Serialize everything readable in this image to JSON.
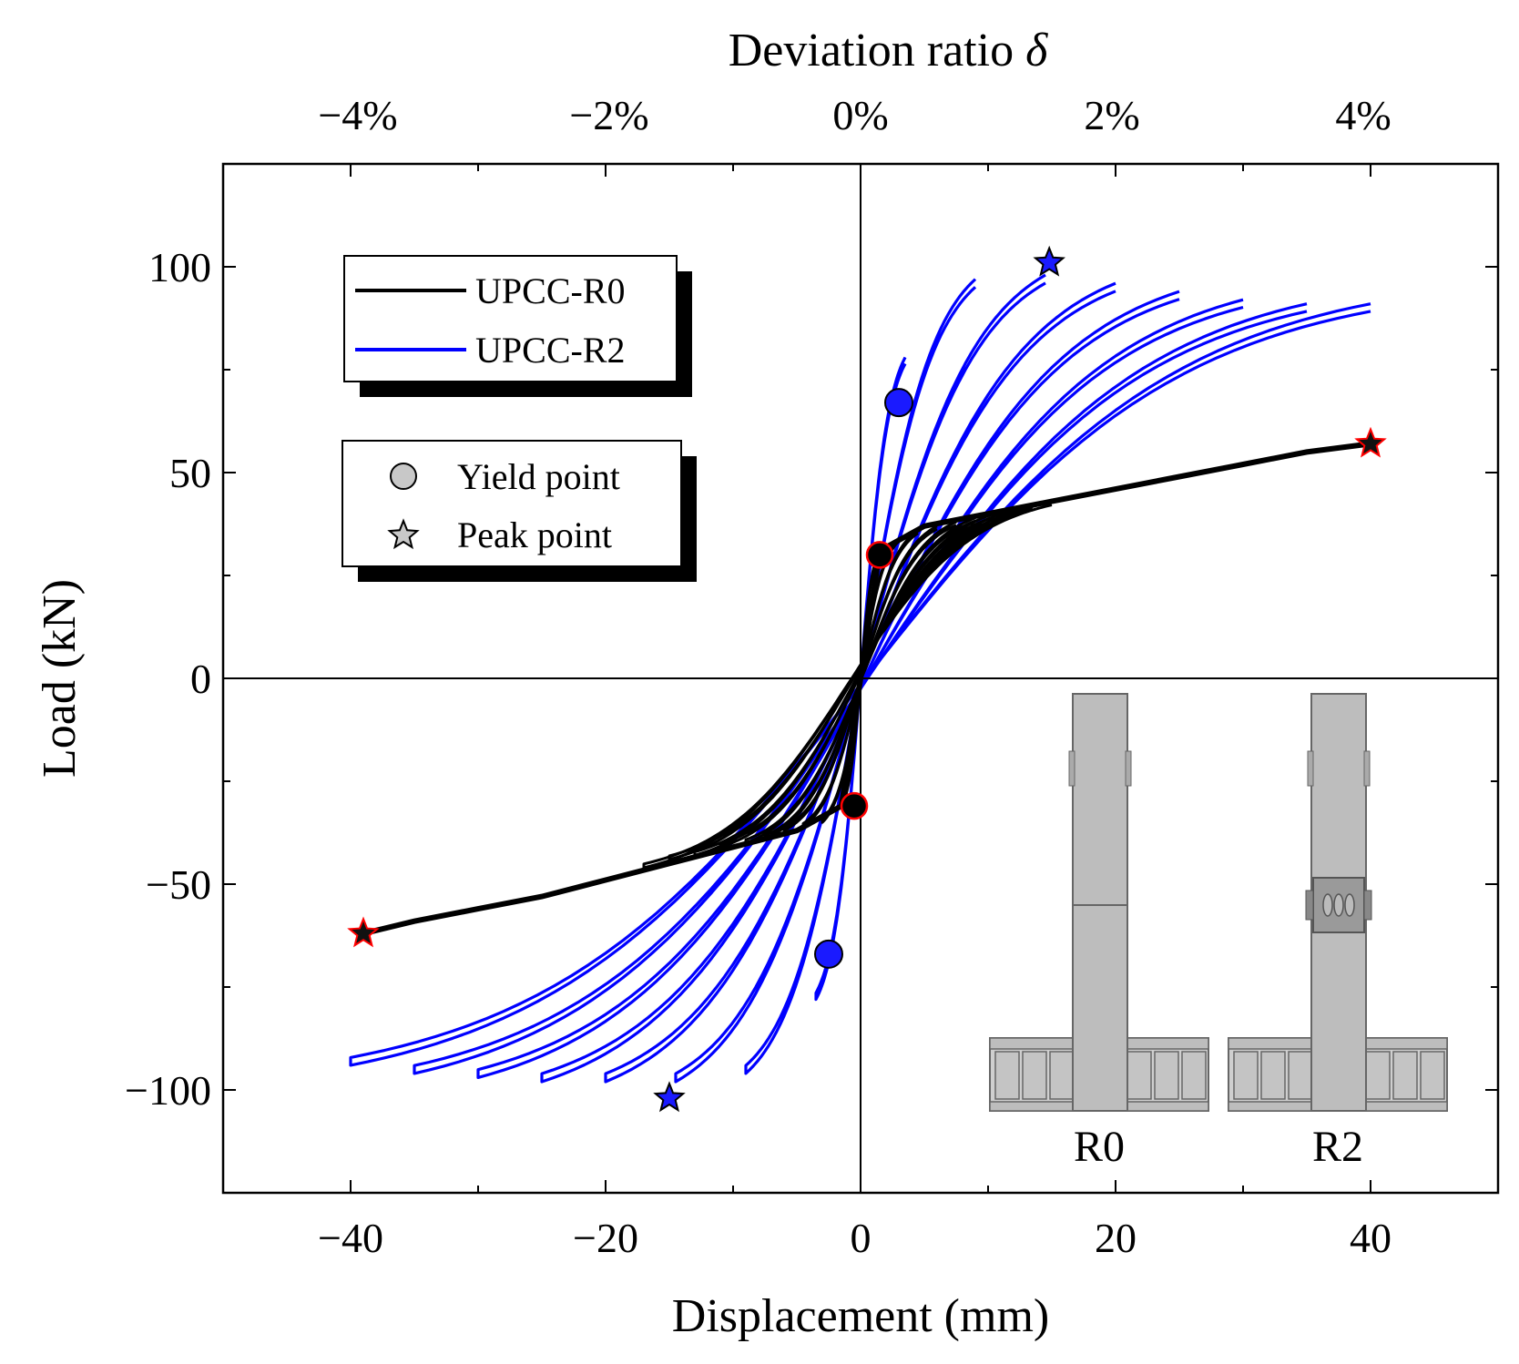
{
  "chart_data": {
    "type": "line",
    "title": "",
    "xlabel": "Displacement (mm)",
    "ylabel": "Load (kN)",
    "top_xlabel_text": "Deviation ratio ",
    "top_xlabel_symbol": "δ",
    "xlim": [
      -50,
      50
    ],
    "ylim": [
      -125,
      125
    ],
    "top_xlim": [
      -5,
      5
    ],
    "x_ticks": [
      -40,
      -20,
      0,
      20,
      40
    ],
    "x_tick_labels": [
      "−40",
      "−20",
      "0",
      "20",
      "40"
    ],
    "y_ticks": [
      -100,
      -50,
      0,
      50,
      100
    ],
    "y_tick_labels": [
      "−100",
      "−50",
      "0",
      "50",
      "100"
    ],
    "top_ticks": [
      -4,
      -2,
      0,
      2,
      4
    ],
    "top_tick_labels": [
      "−4%",
      "−2%",
      "0%",
      "2%",
      "4%"
    ],
    "grid": false,
    "legend_placement": "top-left",
    "series": [
      {
        "name": "UPCC-R0",
        "color": "#000000",
        "cycles": [
          {
            "dmax": 1.5,
            "pmax": 31,
            "dmin": -1.5,
            "pmin": -31
          },
          {
            "dmax": 3,
            "pmax": 34,
            "dmin": -3,
            "pmin": -35
          },
          {
            "dmax": 4.5,
            "pmax": 36,
            "dmin": -4.5,
            "pmin": -36
          },
          {
            "dmax": 6,
            "pmax": 37,
            "dmin": -6,
            "pmin": -37
          },
          {
            "dmax": 7.5,
            "pmax": 38,
            "dmin": -7.5,
            "pmin": -39
          },
          {
            "dmax": 9,
            "pmax": 39,
            "dmin": -9,
            "pmin": -40
          },
          {
            "dmax": 10.5,
            "pmax": 40,
            "dmin": -11,
            "pmin": -41
          },
          {
            "dmax": 12,
            "pmax": 41,
            "dmin": -13,
            "pmin": -43
          },
          {
            "dmax": 13.5,
            "pmax": 42,
            "dmin": -15,
            "pmin": -44
          },
          {
            "dmax": 15,
            "pmax": 43,
            "dmin": -17,
            "pmin": -46
          }
        ],
        "envelope_x": [
          0,
          1.5,
          5,
          10,
          15,
          20,
          25,
          30,
          35,
          40
        ],
        "envelope_y": [
          0,
          31,
          37,
          40,
          43,
          46,
          49,
          52,
          55,
          57
        ],
        "envelope_neg_x": [
          0,
          -1.5,
          -5,
          -10,
          -15,
          -20,
          -25,
          -30,
          -35,
          -39
        ],
        "envelope_neg_y": [
          0,
          -31,
          -37,
          -41,
          -45,
          -49,
          -53,
          -56,
          -59,
          -62
        ]
      },
      {
        "name": "UPCC-R2",
        "color": "#0000ff",
        "cycles": [
          {
            "dmax": 3.5,
            "pmax": 78,
            "dmin": -3.5,
            "pmin": -78
          },
          {
            "dmax": 9,
            "pmax": 97,
            "dmin": -9,
            "pmin": -96
          },
          {
            "dmax": 14.5,
            "pmax": 98,
            "dmin": -14.5,
            "pmin": -98
          },
          {
            "dmax": 20,
            "pmax": 96,
            "dmin": -20,
            "pmin": -98
          },
          {
            "dmax": 25,
            "pmax": 94,
            "dmin": -25,
            "pmin": -98
          },
          {
            "dmax": 30,
            "pmax": 92,
            "dmin": -30,
            "pmin": -97
          },
          {
            "dmax": 35,
            "pmax": 91,
            "dmin": -35,
            "pmin": -96
          },
          {
            "dmax": 40,
            "pmax": 91,
            "dmin": -40,
            "pmin": -94
          }
        ]
      }
    ],
    "points": [
      {
        "name": "yield-R2-pos",
        "kind": "yield",
        "x": 3,
        "y": 67,
        "color": "#1a1aff"
      },
      {
        "name": "yield-R2-neg",
        "kind": "yield",
        "x": -2.5,
        "y": -67,
        "color": "#1a1aff"
      },
      {
        "name": "yield-R0-pos",
        "kind": "yield",
        "x": 1.5,
        "y": 30,
        "color": "#000000"
      },
      {
        "name": "yield-R0-neg",
        "kind": "yield",
        "x": -0.5,
        "y": -31,
        "color": "#000000"
      },
      {
        "name": "peak-R2-pos",
        "kind": "peak",
        "x": 14.8,
        "y": 101,
        "color": "#1a1aff"
      },
      {
        "name": "peak-R2-neg",
        "kind": "peak",
        "x": -15,
        "y": -102,
        "color": "#1a1aff"
      },
      {
        "name": "peak-R0-pos",
        "kind": "peak",
        "x": 40,
        "y": 57,
        "color": "#111111"
      },
      {
        "name": "peak-R0-neg",
        "kind": "peak",
        "x": -39,
        "y": -62,
        "color": "#111111"
      }
    ],
    "legend_series": [
      {
        "label": "UPCC-R0",
        "color": "#000000"
      },
      {
        "label": "UPCC-R2",
        "color": "#0000ff"
      }
    ],
    "legend_markers": [
      {
        "label": "Yield point",
        "marker": "circle"
      },
      {
        "label": "Peak point",
        "marker": "star"
      }
    ],
    "inset_labels": [
      "R0",
      "R2"
    ]
  }
}
